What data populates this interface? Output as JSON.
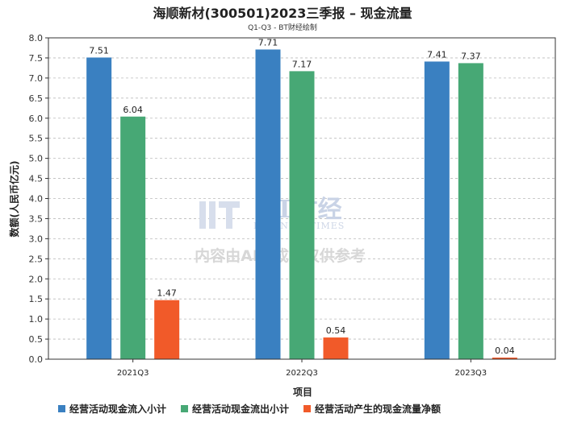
{
  "chart_data": {
    "type": "bar",
    "title": "海顺新材(300501)2023三季报 – 现金流量",
    "subtitle": "Q1-Q3 - BT财经绘制",
    "xlabel": "项目",
    "ylabel": "数额(人民币亿元)",
    "ylim": [
      0,
      8.0
    ],
    "yticks": [
      0.0,
      0.5,
      1.0,
      1.5,
      2.0,
      2.5,
      3.0,
      3.5,
      4.0,
      4.5,
      5.0,
      5.5,
      6.0,
      6.5,
      7.0,
      7.5,
      8.0
    ],
    "grid": true,
    "legend_position": "bottom",
    "categories": [
      "2021Q3",
      "2022Q3",
      "2023Q3"
    ],
    "series": [
      {
        "name": "经营活动现金流入小计",
        "color": "#3a80c1",
        "values": [
          7.51,
          7.71,
          7.41
        ]
      },
      {
        "name": "经营活动现金流出小计",
        "color": "#47a875",
        "values": [
          6.04,
          7.17,
          7.37
        ]
      },
      {
        "name": "经营活动产生的现金流量净额",
        "color": "#f15a29",
        "values": [
          1.47,
          0.54,
          0.04
        ]
      }
    ]
  },
  "watermark": {
    "brand": "BT财经",
    "brand_sub": "BUSINESSTIMES",
    "notice": "内容由AI生成，仅供参考"
  }
}
